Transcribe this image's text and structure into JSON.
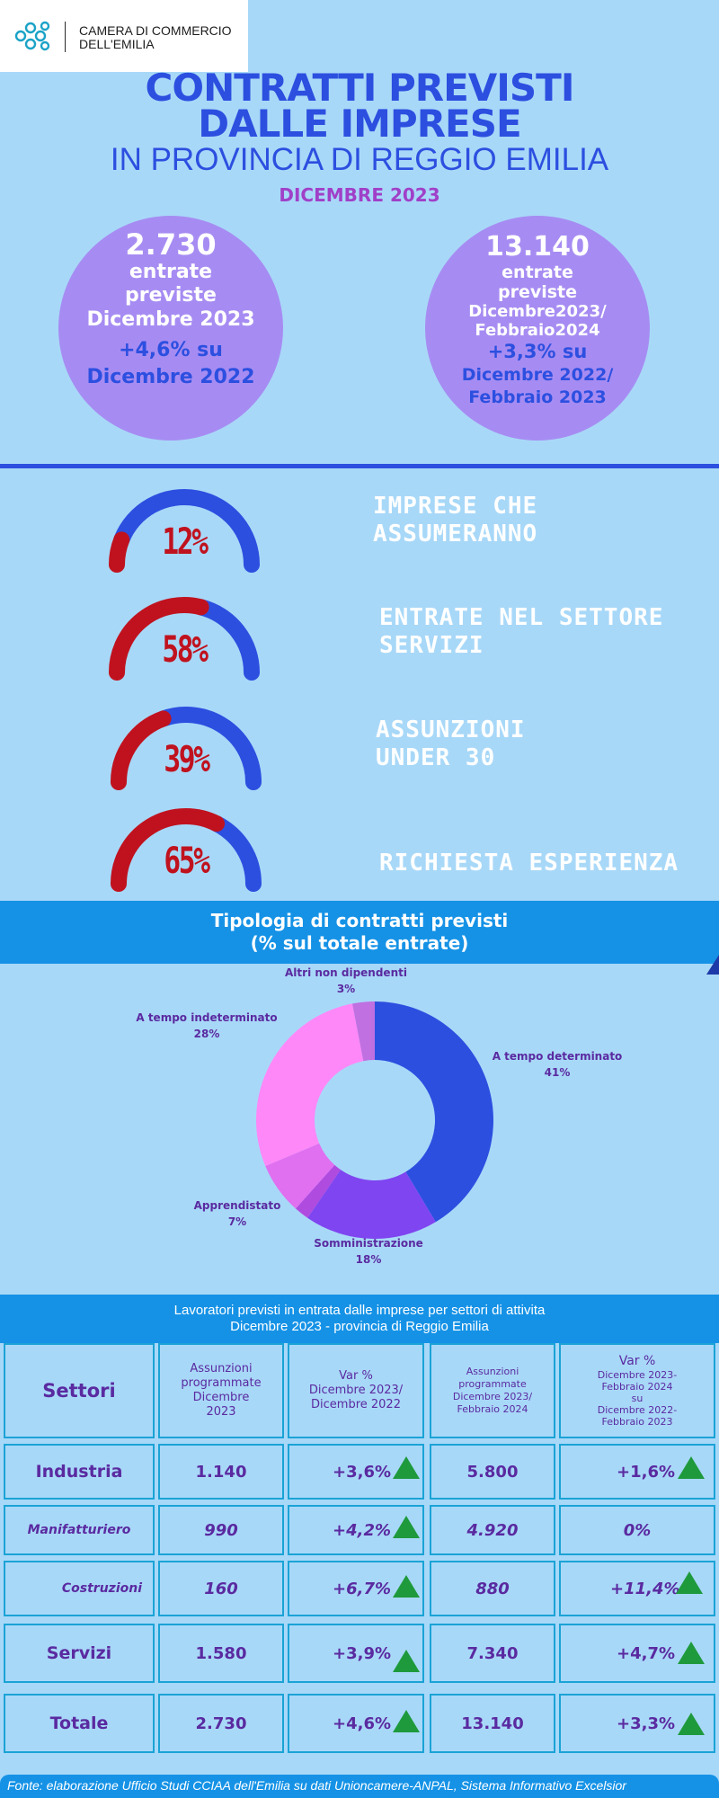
{
  "logo": {
    "line1": "CAMERA DI COMMERCIO",
    "line2": "DELL'EMILIA"
  },
  "header": {
    "title_line1": "CONTRATTI PREVISTI",
    "title_line2": "DALLE IMPRESE",
    "subtitle": "IN PROVINCIA DI REGGIO EMILIA",
    "period": "DICEMBRE 2023"
  },
  "kpi_left": {
    "value": "2.730",
    "line1": "entrate",
    "line2": "previste",
    "line3": "Dicembre 2023",
    "change": "+4,6% su",
    "compare": "Dicembre 2022"
  },
  "kpi_right": {
    "value": "13.140",
    "line1": "entrate",
    "line2": "previste",
    "line3": "Dicembre2023/",
    "line4": "Febbraio2024",
    "change": "+3,3% su",
    "compare1": "Dicembre 2022/",
    "compare2": "Febbraio 2023"
  },
  "gauges": [
    {
      "value": 12,
      "label": "12%",
      "text_line1": "IMPRESE CHE",
      "text_line2": "ASSUMERANNO"
    },
    {
      "value": 58,
      "label": "58%",
      "text_line1": "ENTRATE NEL SETTORE",
      "text_line2": "SERVIZI"
    },
    {
      "value": 39,
      "label": "39%",
      "text_line1": "ASSUNZIONI",
      "text_line2": "UNDER 30"
    },
    {
      "value": 65,
      "label": "65%",
      "text_line1": "RICHIESTA ESPERIENZA",
      "text_line2": ""
    }
  ],
  "colors": {
    "gauge_fill": "#c0121e",
    "gauge_track": "#2c4fe0",
    "accent": "#2c4fe0",
    "banner": "#1592e6",
    "circle": "#a68cf2",
    "up_arrow": "#1e9a3c"
  },
  "contract_section": {
    "title": "Tipologia di contratti previsti",
    "subtitle": "(% sul totale entrate)"
  },
  "chart_data": {
    "type": "pie",
    "style": "donut",
    "slices": [
      {
        "name": "A tempo determinato",
        "value": 41,
        "label": "41%",
        "color": "#2c4fe0"
      },
      {
        "name": "Somministrazione",
        "value": 18,
        "label": "18%",
        "color": "#7f45f0"
      },
      {
        "name": "",
        "value": 2,
        "label": "",
        "color": "#b04be0"
      },
      {
        "name": "Apprendistato",
        "value": 7,
        "label": "7%",
        "color": "#e070f0"
      },
      {
        "name": "A tempo indeterminato",
        "value": 28,
        "label": "28%",
        "color": "#ff88f8"
      },
      {
        "name": "Altri non dipendenti",
        "value": 3,
        "label": "3%",
        "color": "#c070e0"
      }
    ]
  },
  "table": {
    "title_line1": "Lavoratori previsti in entrata dalle imprese per settori di attivita",
    "title_line2": "Dicembre 2023 - provincia di Reggio Emilia",
    "headers": {
      "settori": "Settori",
      "col1": [
        "Assunzioni",
        "programmate",
        "Dicembre",
        "2023"
      ],
      "col2": [
        "Var %",
        "Dicembre 2023/",
        "Dicembre 2022"
      ],
      "col3": [
        "Assunzioni",
        "programmate",
        "Dicembre 2023/",
        "Febbraio  2024"
      ],
      "col4": [
        "Var %",
        "Dicembre  2023-",
        "Febbraio 2024",
        "su",
        "Dicembre 2022-",
        "Febbraio 2023"
      ]
    },
    "rows": [
      {
        "label": "Industria",
        "c1": "1.140",
        "c2": "+3,6%",
        "c2_up": true,
        "c3": "5.800",
        "c4": "+1,6%",
        "c4_up": true,
        "style": "main"
      },
      {
        "label": "Manifatturiero",
        "c1": "990",
        "c2": "+4,2%",
        "c2_up": true,
        "c3": "4.920",
        "c4": "0%",
        "c4_up": false,
        "style": "sub"
      },
      {
        "label": "Costruzioni",
        "c1": "160",
        "c2": "+6,7%",
        "c2_up": true,
        "c3": "880",
        "c4": "+11,4%",
        "c4_up": true,
        "style": "sub"
      },
      {
        "label": "Servizi",
        "c1": "1.580",
        "c2": "+3,9%",
        "c2_up": true,
        "c3": "7.340",
        "c4": "+4,7%",
        "c4_up": true,
        "style": "main"
      },
      {
        "label": "Totale",
        "c1": "2.730",
        "c2": "+4,6%",
        "c2_up": true,
        "c3": "13.140",
        "c4": "+3,3%",
        "c4_up": true,
        "style": "main"
      }
    ]
  },
  "footer": {
    "text": "Fonte: elaborazione Ufficio Studi CCIAA dell'Emilia su dati Unioncamere-ANPAL, Sistema Informativo Excelsior"
  }
}
